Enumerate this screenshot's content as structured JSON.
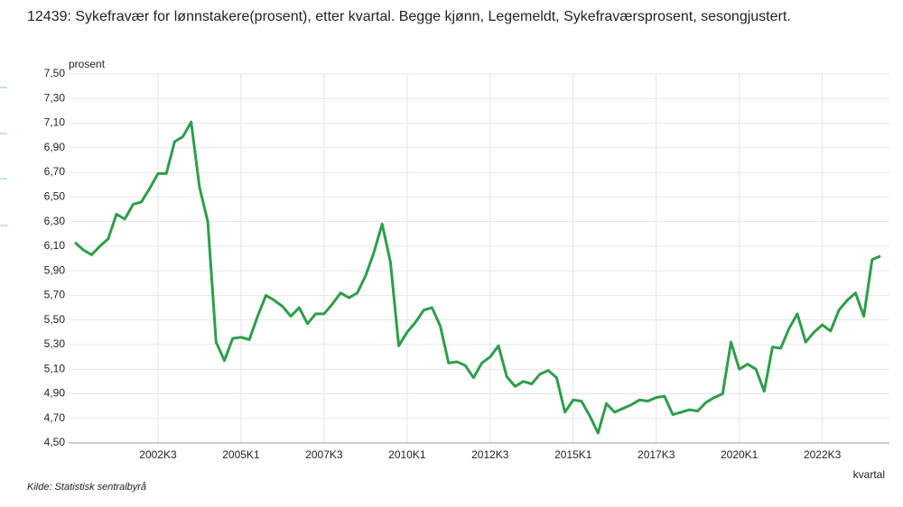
{
  "chart_data": {
    "type": "line",
    "title": "12439: Sykefravær for lønnstakere(prosent), etter kvartal. Begge kjønn, Legemeldt, Sykefraværsprosent, sesongjustert.",
    "y_axis_label": "prosent",
    "x_axis_label": "kvartal",
    "source": "Kilde:  Statistisk sentralbyrå",
    "categories": [
      null,
      null,
      null,
      null,
      null,
      null,
      null,
      null,
      null,
      null,
      "2002K3",
      null,
      null,
      null,
      null,
      null,
      null,
      null,
      null,
      null,
      "2005K1",
      null,
      null,
      null,
      null,
      null,
      null,
      null,
      null,
      null,
      "2007K3",
      null,
      null,
      null,
      null,
      null,
      null,
      null,
      null,
      null,
      "2010K1",
      null,
      null,
      null,
      null,
      null,
      null,
      null,
      null,
      null,
      "2012K3",
      null,
      null,
      null,
      null,
      null,
      null,
      null,
      null,
      null,
      "2015K1",
      null,
      null,
      null,
      null,
      null,
      null,
      null,
      null,
      null,
      "2017K3",
      null,
      null,
      null,
      null,
      null,
      null,
      null,
      null,
      null,
      "2020K1",
      null,
      null,
      null,
      null,
      null,
      null,
      null,
      null,
      null,
      "2022K3",
      null,
      null,
      null,
      null,
      null,
      null,
      null
    ],
    "series": [
      {
        "name": "Sykefraværsprosent",
        "color": "#2e9e4a",
        "values": [
          6.13,
          6.07,
          6.03,
          6.1,
          6.16,
          6.36,
          6.32,
          6.44,
          6.46,
          6.57,
          6.69,
          6.69,
          6.95,
          6.99,
          7.11,
          6.58,
          6.3,
          5.32,
          5.17,
          5.35,
          5.36,
          5.34,
          5.53,
          5.7,
          5.66,
          5.61,
          5.53,
          5.6,
          5.47,
          5.55,
          5.55,
          5.63,
          5.72,
          5.68,
          5.72,
          5.86,
          6.05,
          6.28,
          5.97,
          5.29,
          5.4,
          5.48,
          5.58,
          5.6,
          5.45,
          5.15,
          5.16,
          5.13,
          5.03,
          5.15,
          5.2,
          5.29,
          5.04,
          4.96,
          5.0,
          4.98,
          5.06,
          5.09,
          5.03,
          4.75,
          4.85,
          4.84,
          4.72,
          4.58,
          4.82,
          4.75,
          4.78,
          4.81,
          4.85,
          4.84,
          4.87,
          4.88,
          4.73,
          4.75,
          4.77,
          4.76,
          4.83,
          4.87,
          4.9,
          5.32,
          5.1,
          5.14,
          5.1,
          4.92,
          5.28,
          5.27,
          5.43,
          5.55,
          5.32,
          5.4,
          5.46,
          5.41,
          5.58,
          5.66,
          5.72,
          5.53,
          5.99,
          6.02
        ]
      }
    ],
    "ylim": [
      4.5,
      7.5
    ],
    "yticks": [
      {
        "value": 4.5,
        "label": "4,50"
      },
      {
        "value": 4.7,
        "label": "4,70"
      },
      {
        "value": 4.9,
        "label": "4,90"
      },
      {
        "value": 5.1,
        "label": "5,10"
      },
      {
        "value": 5.3,
        "label": "5,30"
      },
      {
        "value": 5.5,
        "label": "5,50"
      },
      {
        "value": 5.7,
        "label": "5,70"
      },
      {
        "value": 5.9,
        "label": "5,90"
      },
      {
        "value": 6.1,
        "label": "6,10"
      },
      {
        "value": 6.3,
        "label": "6,30"
      },
      {
        "value": 6.5,
        "label": "6,50"
      },
      {
        "value": 6.7,
        "label": "6,70"
      },
      {
        "value": 6.9,
        "label": "6,90"
      },
      {
        "value": 7.1,
        "label": "7,10"
      },
      {
        "value": 7.3,
        "label": "7,30"
      },
      {
        "value": 7.5,
        "label": "7,50"
      }
    ],
    "grid": true
  }
}
